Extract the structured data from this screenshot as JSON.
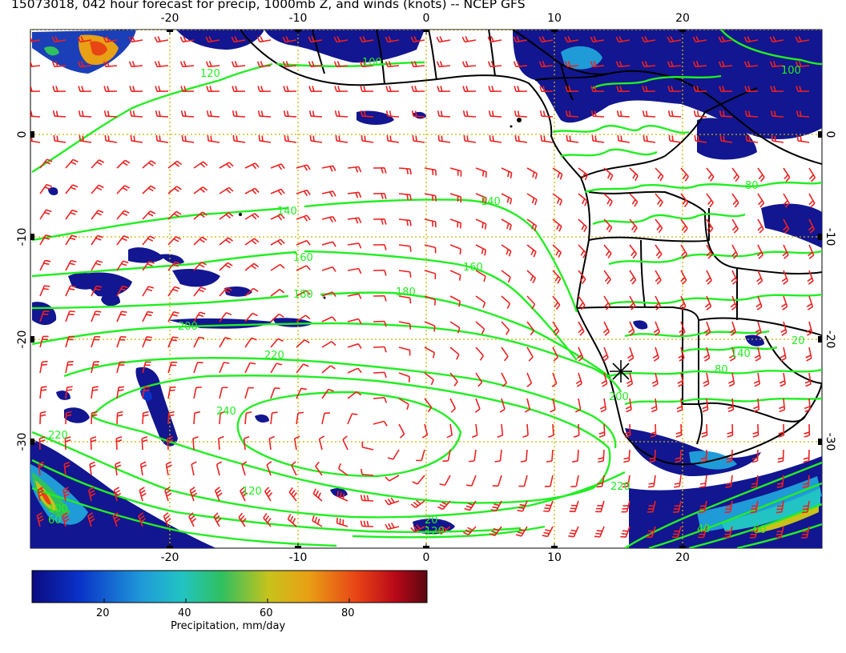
{
  "title": "15073018, 042 hour forecast for precip, 1000mb Z, and winds (knots) -- NCEP GFS",
  "axes": {
    "lon_ticks": [
      "-20",
      "-10",
      "0",
      "10",
      "20"
    ],
    "lat_ticks": [
      "0",
      "-10",
      "-20",
      "-30"
    ],
    "lon_range": [
      -31,
      31
    ],
    "lat_range": [
      -40,
      10.5
    ]
  },
  "colorbar": {
    "label": "Precipitation, mm/day",
    "ticks": [
      "20",
      "40",
      "60",
      "80"
    ],
    "range": [
      1,
      98
    ],
    "colormap": [
      "#0b0b80",
      "#0a32c8",
      "#1f9bd8",
      "#22c3c3",
      "#2fc060",
      "#c8c21b",
      "#e8a015",
      "#e84515",
      "#b80818",
      "#5a0810"
    ]
  },
  "contours": {
    "field": "1000mb Z",
    "color": "#22ee22",
    "labels": [
      "100",
      "120",
      "140",
      "160",
      "180",
      "200",
      "220",
      "240",
      "80",
      "60",
      "40",
      "20"
    ]
  },
  "winds": {
    "color": "#ee2020",
    "units": "knots"
  },
  "marker": {
    "symbol": "asterisk"
  },
  "colors": {
    "precip_dark": "#121690",
    "boundary": "#000000",
    "grid": "#c8b400"
  }
}
